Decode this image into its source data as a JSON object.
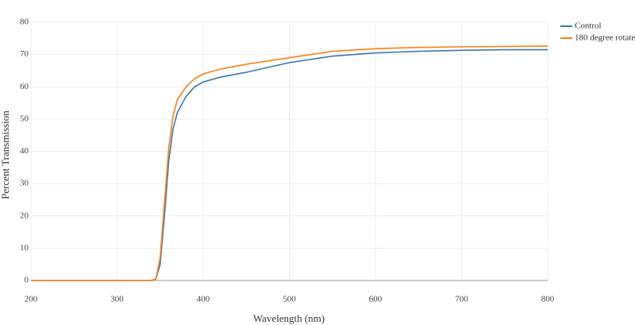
{
  "chart_data": {
    "type": "line",
    "xlabel": "Wavelength (nm)",
    "ylabel": "Percent Transmission",
    "x": [
      200,
      250,
      300,
      340,
      345,
      350,
      355,
      360,
      365,
      370,
      380,
      390,
      400,
      420,
      450,
      500,
      550,
      600,
      650,
      700,
      750,
      800
    ],
    "series": [
      {
        "name": "Control",
        "color": "#3a78b0",
        "values": [
          0,
          0,
          0,
          0,
          0.5,
          5,
          20,
          37,
          47,
          52,
          57,
          60,
          61.5,
          63,
          64.5,
          67.5,
          69.5,
          70.5,
          71,
          71.3,
          71.5,
          71.5
        ]
      },
      {
        "name": "180 degree rotate",
        "color": "#ff7f0e",
        "values": [
          0,
          0,
          0,
          0,
          0.5,
          7,
          24,
          41,
          51,
          56,
          60,
          62.5,
          64,
          65.5,
          67,
          69,
          71,
          71.8,
          72.2,
          72.4,
          72.5,
          72.6
        ]
      }
    ],
    "xlim": [
      200,
      800
    ],
    "ylim": [
      0,
      80
    ],
    "xticks": [
      200,
      300,
      400,
      500,
      600,
      700,
      800
    ],
    "yticks": [
      0,
      10,
      20,
      30,
      40,
      50,
      60,
      70,
      80
    ],
    "grid": true,
    "legend": "top-right"
  }
}
